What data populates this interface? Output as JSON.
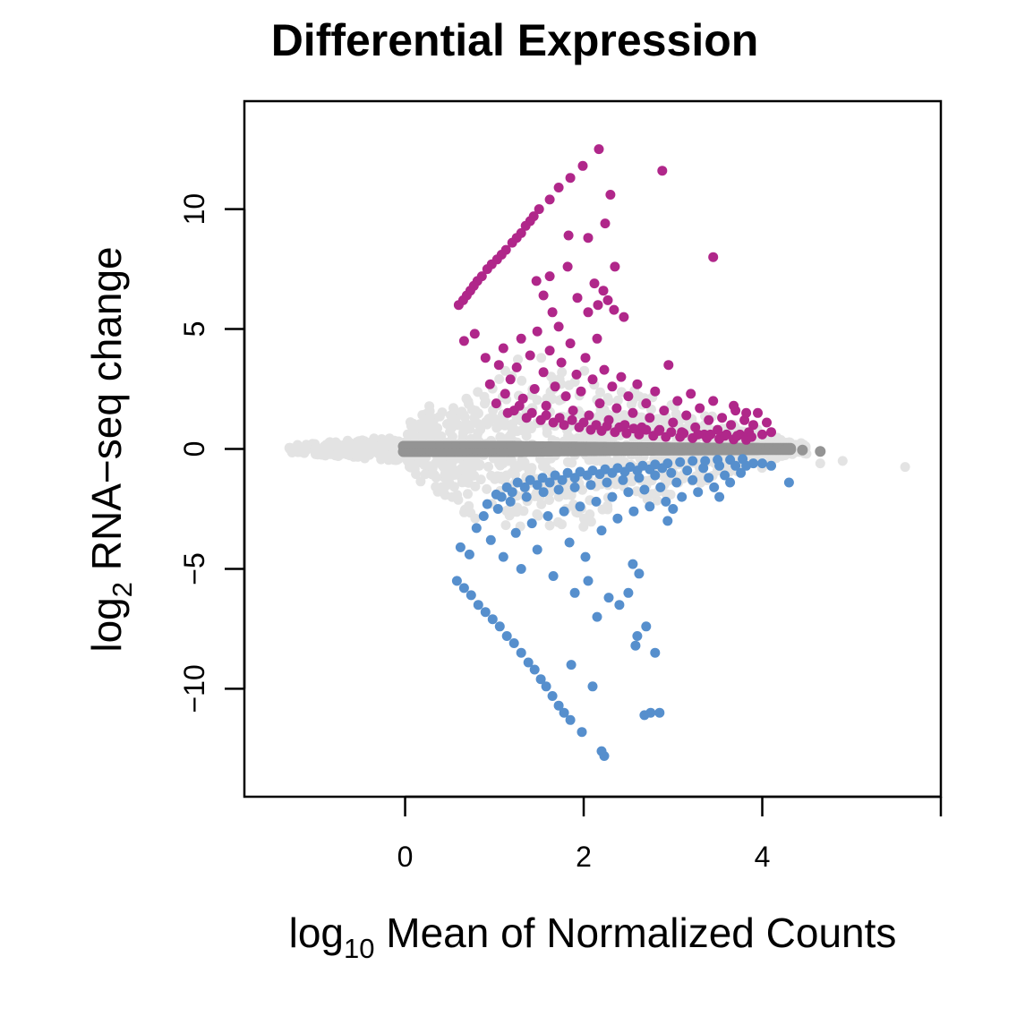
{
  "chart_data": {
    "type": "scatter",
    "title": "Differential Expression",
    "xlabel": {
      "prefix": "log",
      "subscript": "10",
      "suffix": " Mean of Normalized Counts"
    },
    "ylabel": {
      "prefix": "log",
      "subscript": "2",
      "suffix": " RNA−seq change"
    },
    "xlim": [
      -1.8,
      6.0
    ],
    "ylim": [
      -14.5,
      14.5
    ],
    "x_ticks": [
      {
        "value": 0,
        "label": "0"
      },
      {
        "value": 2,
        "label": "2"
      },
      {
        "value": 4,
        "label": "4"
      },
      {
        "value": 6,
        "label": ""
      }
    ],
    "y_ticks": [
      {
        "value": -10,
        "label": "−10"
      },
      {
        "value": -5,
        "label": "−5"
      },
      {
        "value": 0,
        "label": "0"
      },
      {
        "value": 5,
        "label": "5"
      },
      {
        "value": 10,
        "label": "10"
      }
    ],
    "grid": false,
    "legend": "none",
    "colors": {
      "not_tested": "#e3e3e3",
      "not_significant": "#949494",
      "up_regulated": "#b0278a",
      "down_regulated": "#568fcd"
    },
    "series": [
      {
        "group": "up_regulated",
        "color": "#b0278a",
        "points": [
          [
            2.17,
            12.5
          ],
          [
            1.99,
            11.8
          ],
          [
            2.88,
            11.6
          ],
          [
            1.85,
            11.3
          ],
          [
            1.72,
            10.9
          ],
          [
            1.62,
            10.4
          ],
          [
            2.3,
            10.6
          ],
          [
            1.5,
            10.0
          ],
          [
            1.44,
            9.7
          ],
          [
            1.4,
            9.5
          ],
          [
            1.35,
            9.3
          ],
          [
            1.3,
            9.0
          ],
          [
            1.25,
            8.8
          ],
          [
            1.2,
            8.6
          ],
          [
            1.13,
            8.3
          ],
          [
            1.08,
            8.1
          ],
          [
            1.03,
            7.9
          ],
          [
            0.97,
            7.7
          ],
          [
            0.92,
            7.5
          ],
          [
            0.86,
            7.2
          ],
          [
            0.81,
            7.0
          ],
          [
            0.77,
            6.8
          ],
          [
            0.73,
            6.6
          ],
          [
            0.69,
            6.4
          ],
          [
            0.65,
            6.2
          ],
          [
            0.6,
            6.0
          ],
          [
            2.24,
            9.4
          ],
          [
            1.83,
            8.9
          ],
          [
            2.05,
            8.8
          ],
          [
            2.35,
            7.6
          ],
          [
            1.47,
            7.0
          ],
          [
            1.62,
            7.2
          ],
          [
            1.55,
            6.4
          ],
          [
            1.82,
            7.6
          ],
          [
            2.12,
            6.9
          ],
          [
            2.22,
            6.6
          ],
          [
            1.93,
            6.3
          ],
          [
            2.16,
            6.0
          ],
          [
            2.34,
            5.8
          ],
          [
            2.45,
            5.5
          ],
          [
            3.45,
            8.0
          ],
          [
            2.27,
            6.2
          ],
          [
            2.05,
            5.7
          ],
          [
            1.65,
            5.7
          ],
          [
            0.66,
            4.5
          ],
          [
            0.78,
            4.8
          ],
          [
            0.9,
            3.8
          ],
          [
            0.95,
            2.7
          ],
          [
            1.05,
            3.5
          ],
          [
            1.1,
            4.2
          ],
          [
            1.18,
            2.9
          ],
          [
            1.25,
            3.4
          ],
          [
            1.3,
            4.6
          ],
          [
            1.32,
            2.1
          ],
          [
            1.4,
            3.9
          ],
          [
            1.45,
            2.5
          ],
          [
            1.48,
            4.9
          ],
          [
            1.55,
            3.2
          ],
          [
            1.58,
            1.8
          ],
          [
            1.62,
            4.1
          ],
          [
            1.68,
            2.6
          ],
          [
            1.72,
            5.1
          ],
          [
            1.75,
            3.6
          ],
          [
            1.8,
            2.2
          ],
          [
            1.85,
            4.4
          ],
          [
            1.88,
            1.6
          ],
          [
            1.92,
            3.1
          ],
          [
            1.97,
            2.4
          ],
          [
            2.02,
            3.8
          ],
          [
            2.06,
            1.4
          ],
          [
            2.1,
            2.9
          ],
          [
            2.15,
            4.6
          ],
          [
            2.18,
            1.9
          ],
          [
            2.23,
            3.3
          ],
          [
            2.28,
            1.2
          ],
          [
            2.32,
            2.6
          ],
          [
            2.37,
            1.7
          ],
          [
            2.42,
            3.0
          ],
          [
            2.46,
            1.0
          ],
          [
            2.5,
            2.2
          ],
          [
            2.55,
            1.5
          ],
          [
            2.6,
            2.7
          ],
          [
            2.65,
            0.9
          ],
          [
            2.7,
            1.9
          ],
          [
            2.74,
            1.3
          ],
          [
            2.8,
            2.4
          ],
          [
            2.85,
            0.8
          ],
          [
            2.9,
            1.6
          ],
          [
            2.95,
            3.5
          ],
          [
            3.0,
            1.1
          ],
          [
            3.05,
            2.0
          ],
          [
            3.1,
            0.7
          ],
          [
            3.15,
            1.4
          ],
          [
            3.2,
            2.3
          ],
          [
            3.25,
            0.9
          ],
          [
            3.3,
            1.7
          ],
          [
            3.35,
            0.6
          ],
          [
            3.4,
            1.2
          ],
          [
            3.45,
            2.0
          ],
          [
            3.5,
            0.8
          ],
          [
            3.55,
            1.3
          ],
          [
            3.6,
            0.6
          ],
          [
            3.65,
            1.0
          ],
          [
            3.7,
            1.6
          ],
          [
            3.75,
            0.6
          ],
          [
            3.8,
            1.2
          ],
          [
            3.85,
            0.7
          ],
          [
            3.9,
            1.0
          ],
          [
            3.95,
            1.5
          ],
          [
            4.0,
            0.6
          ],
          [
            4.05,
            1.1
          ],
          [
            4.1,
            0.7
          ],
          [
            3.68,
            1.8
          ],
          [
            3.82,
            1.5
          ],
          [
            1.12,
            2.3
          ],
          [
            1.22,
            1.6
          ],
          [
            1.36,
            1.3
          ],
          [
            1.52,
            1.2
          ],
          [
            1.66,
            1.1
          ],
          [
            1.78,
            1.0
          ],
          [
            1.95,
            0.9
          ],
          [
            2.08,
            0.8
          ],
          [
            2.2,
            0.75
          ],
          [
            2.35,
            0.7
          ],
          [
            2.48,
            0.65
          ],
          [
            2.62,
            0.6
          ],
          [
            2.78,
            0.55
          ],
          [
            2.92,
            0.5
          ],
          [
            3.08,
            0.5
          ],
          [
            3.22,
            0.45
          ],
          [
            3.38,
            0.45
          ],
          [
            3.52,
            0.42
          ],
          [
            3.68,
            0.4
          ],
          [
            3.82,
            0.38
          ],
          [
            1.02,
            1.9
          ],
          [
            1.15,
            1.5
          ],
          [
            1.28,
            1.8
          ],
          [
            1.42,
            1.5
          ],
          [
            1.58,
            1.4
          ],
          [
            1.73,
            1.3
          ],
          [
            1.87,
            1.2
          ],
          [
            2.0,
            1.1
          ],
          [
            2.14,
            1.0
          ],
          [
            2.26,
            0.95
          ],
          [
            2.4,
            0.9
          ],
          [
            2.56,
            0.85
          ],
          [
            2.7,
            0.8
          ],
          [
            2.84,
            0.75
          ],
          [
            2.98,
            0.7
          ],
          [
            3.12,
            0.65
          ],
          [
            3.28,
            0.6
          ],
          [
            3.42,
            0.6
          ],
          [
            3.58,
            0.55
          ],
          [
            3.72,
            0.55
          ],
          [
            3.88,
            0.5
          ]
        ]
      },
      {
        "group": "down_regulated",
        "color": "#568fcd",
        "points": [
          [
            2.23,
            -12.8
          ],
          [
            2.2,
            -12.6
          ],
          [
            1.98,
            -11.8
          ],
          [
            1.85,
            -11.3
          ],
          [
            1.78,
            -11.0
          ],
          [
            1.72,
            -10.7
          ],
          [
            1.65,
            -10.3
          ],
          [
            1.58,
            -9.9
          ],
          [
            1.52,
            -9.6
          ],
          [
            1.45,
            -9.2
          ],
          [
            1.38,
            -8.9
          ],
          [
            1.3,
            -8.5
          ],
          [
            1.22,
            -8.1
          ],
          [
            1.14,
            -7.8
          ],
          [
            1.06,
            -7.4
          ],
          [
            0.98,
            -7.1
          ],
          [
            0.9,
            -6.8
          ],
          [
            0.82,
            -6.5
          ],
          [
            0.74,
            -6.1
          ],
          [
            0.66,
            -5.8
          ],
          [
            0.58,
            -5.5
          ],
          [
            2.75,
            -11.0
          ],
          [
            2.85,
            -11.0
          ],
          [
            2.68,
            -11.1
          ],
          [
            2.1,
            -9.9
          ],
          [
            1.86,
            -9.0
          ],
          [
            2.6,
            -7.8
          ],
          [
            2.7,
            -7.4
          ],
          [
            2.8,
            -8.5
          ],
          [
            2.58,
            -8.2
          ],
          [
            2.4,
            -6.5
          ],
          [
            2.28,
            -6.2
          ],
          [
            2.05,
            -5.5
          ],
          [
            1.9,
            -6.0
          ],
          [
            2.15,
            -7.0
          ],
          [
            2.5,
            -6.0
          ],
          [
            2.62,
            -5.2
          ],
          [
            2.55,
            -4.8
          ],
          [
            0.62,
            -4.1
          ],
          [
            0.72,
            -4.4
          ],
          [
            0.8,
            -3.3
          ],
          [
            0.88,
            -2.8
          ],
          [
            0.96,
            -3.8
          ],
          [
            1.04,
            -2.5
          ],
          [
            1.1,
            -4.5
          ],
          [
            1.18,
            -2.2
          ],
          [
            1.24,
            -3.5
          ],
          [
            1.3,
            -5.0
          ],
          [
            1.36,
            -2.0
          ],
          [
            1.42,
            -3.1
          ],
          [
            1.48,
            -4.2
          ],
          [
            1.55,
            -1.8
          ],
          [
            1.6,
            -2.8
          ],
          [
            1.66,
            -5.3
          ],
          [
            1.72,
            -1.7
          ],
          [
            1.78,
            -2.6
          ],
          [
            1.84,
            -3.9
          ],
          [
            1.9,
            -1.6
          ],
          [
            1.96,
            -2.4
          ],
          [
            2.02,
            -4.5
          ],
          [
            2.08,
            -1.5
          ],
          [
            2.14,
            -2.2
          ],
          [
            2.2,
            -3.4
          ],
          [
            2.26,
            -1.4
          ],
          [
            2.32,
            -2.0
          ],
          [
            2.38,
            -2.9
          ],
          [
            2.44,
            -1.3
          ],
          [
            2.5,
            -1.8
          ],
          [
            2.56,
            -2.6
          ],
          [
            2.62,
            -1.2
          ],
          [
            2.68,
            -1.7
          ],
          [
            2.74,
            -2.4
          ],
          [
            2.8,
            -1.1
          ],
          [
            2.86,
            -1.6
          ],
          [
            2.92,
            -2.2
          ],
          [
            2.98,
            -1.0
          ],
          [
            3.04,
            -1.4
          ],
          [
            3.1,
            -2.0
          ],
          [
            3.16,
            -0.9
          ],
          [
            3.22,
            -1.3
          ],
          [
            3.28,
            -1.8
          ],
          [
            3.34,
            -0.8
          ],
          [
            3.4,
            -1.2
          ],
          [
            3.46,
            -1.6
          ],
          [
            3.52,
            -0.7
          ],
          [
            3.58,
            -1.1
          ],
          [
            3.64,
            -1.4
          ],
          [
            3.7,
            -0.7
          ],
          [
            3.76,
            -1.0
          ],
          [
            3.82,
            -0.7
          ],
          [
            3.9,
            -0.6
          ],
          [
            4.0,
            -0.6
          ],
          [
            4.1,
            -0.7
          ],
          [
            4.3,
            -1.4
          ],
          [
            2.94,
            -3.0
          ],
          [
            3.0,
            -2.5
          ],
          [
            3.52,
            -2.0
          ],
          [
            1.02,
            -1.9
          ],
          [
            1.14,
            -1.6
          ],
          [
            1.26,
            -1.4
          ],
          [
            1.4,
            -1.3
          ],
          [
            1.54,
            -1.2
          ],
          [
            1.68,
            -1.1
          ],
          [
            1.82,
            -1.0
          ],
          [
            1.96,
            -0.95
          ],
          [
            2.1,
            -0.9
          ],
          [
            2.24,
            -0.85
          ],
          [
            2.38,
            -0.8
          ],
          [
            2.52,
            -0.75
          ],
          [
            2.66,
            -0.7
          ],
          [
            2.8,
            -0.65
          ],
          [
            2.94,
            -0.6
          ],
          [
            3.08,
            -0.55
          ],
          [
            3.22,
            -0.5
          ],
          [
            3.36,
            -0.5
          ],
          [
            3.5,
            -0.45
          ],
          [
            3.64,
            -0.45
          ],
          [
            3.78,
            -0.42
          ],
          [
            0.92,
            -2.3
          ],
          [
            1.08,
            -2.0
          ],
          [
            1.2,
            -1.8
          ],
          [
            1.34,
            -1.6
          ],
          [
            1.48,
            -1.5
          ],
          [
            1.62,
            -1.4
          ],
          [
            1.76,
            -1.3
          ],
          [
            1.9,
            -1.2
          ],
          [
            2.04,
            -1.1
          ],
          [
            2.18,
            -1.05
          ],
          [
            2.32,
            -1.0
          ],
          [
            2.46,
            -0.95
          ],
          [
            2.6,
            -0.9
          ],
          [
            2.74,
            -0.85
          ],
          [
            2.88,
            -0.8
          ]
        ]
      }
    ]
  }
}
